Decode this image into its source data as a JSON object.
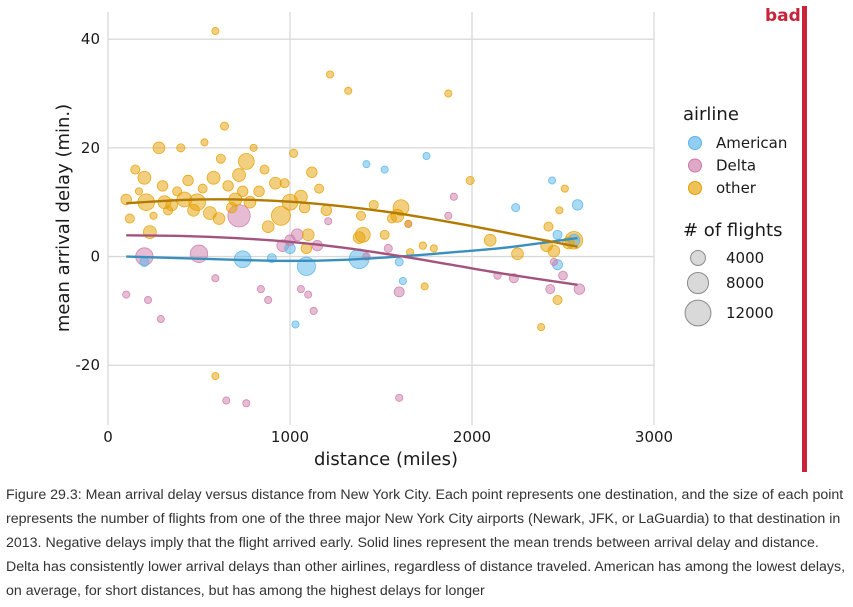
{
  "annotation": {
    "label": "bad"
  },
  "caption": "Figure 29.3: Mean arrival delay versus distance from New York City. Each point represents one destination, and the size of each point represents the number of flights from one of the three major New York City airports (Newark, JFK, or LaGuardia) to that destination in 2013. Negative delays imply that the flight arrived early. Solid lines represent the mean trends between arrival delay and distance. Delta has consistently lower arrival delays than other airlines, regardless of distance traveled. American has among the lowest delays, on average, for short distances, but has among the highest delays for longer",
  "colors": {
    "American": "#56b4e9",
    "Delta": "#cc79a7",
    "other": "#e69f00",
    "bad": "#c8233a"
  },
  "chart_data": {
    "type": "scatter",
    "xlabel": "distance (miles)",
    "ylabel": "mean arrival delay (min.)",
    "xlim": [
      0,
      3000
    ],
    "ylim": [
      -31,
      45
    ],
    "xticks": [
      0,
      1000,
      2000,
      3000
    ],
    "yticks": [
      -20,
      0,
      20,
      40
    ],
    "grid": true,
    "legend": {
      "color_title": "airline",
      "size_title": "# of flights",
      "size_values": [
        4000,
        8000,
        12000
      ],
      "position": "right"
    },
    "series": [
      {
        "name": "American",
        "points": [
          [
            200,
            -1,
            1500
          ],
          [
            740,
            -0.5,
            5000
          ],
          [
            900,
            -0.3,
            1500
          ],
          [
            1000,
            1.5,
            2000
          ],
          [
            1030,
            -12.5,
            600
          ],
          [
            1090,
            -1.8,
            6000
          ],
          [
            1380,
            -0.4,
            7000
          ],
          [
            1420,
            17,
            900
          ],
          [
            1520,
            16,
            900
          ],
          [
            1600,
            -1,
            1200
          ],
          [
            1620,
            -4.5,
            900
          ],
          [
            1750,
            18.5,
            500
          ],
          [
            2240,
            9,
            1200
          ],
          [
            2440,
            14,
            900
          ],
          [
            2470,
            -1.5,
            1800
          ],
          [
            2580,
            9.5,
            2000
          ],
          [
            2470,
            4,
            1500
          ],
          [
            2560,
            3,
            2500
          ]
        ]
      },
      {
        "name": "Delta",
        "points": [
          [
            100,
            -7,
            300
          ],
          [
            200,
            0,
            5500
          ],
          [
            220,
            -8,
            300
          ],
          [
            290,
            -11.5,
            300
          ],
          [
            500,
            0.5,
            5500
          ],
          [
            590,
            -4,
            500
          ],
          [
            650,
            -26.5,
            300
          ],
          [
            720,
            7.5,
            9000
          ],
          [
            760,
            -27,
            300
          ],
          [
            840,
            -6,
            300
          ],
          [
            880,
            -8,
            300
          ],
          [
            960,
            2,
            2500
          ],
          [
            1000,
            3,
            2000
          ],
          [
            1040,
            4,
            2500
          ],
          [
            1060,
            -6,
            900
          ],
          [
            1100,
            -7,
            900
          ],
          [
            1130,
            -10,
            300
          ],
          [
            1150,
            2,
            2000
          ],
          [
            1210,
            6.5,
            600
          ],
          [
            1420,
            0,
            1000
          ],
          [
            1540,
            1.5,
            1200
          ],
          [
            1600,
            -26,
            300
          ],
          [
            1600,
            -6.5,
            1800
          ],
          [
            1650,
            6,
            900
          ],
          [
            1870,
            7.5,
            700
          ],
          [
            1900,
            11,
            300
          ],
          [
            2140,
            -3.5,
            1000
          ],
          [
            2230,
            -4,
            1500
          ],
          [
            2430,
            -6,
            1500
          ],
          [
            2450,
            -1,
            700
          ],
          [
            2500,
            -3.5,
            1400
          ],
          [
            2590,
            -6,
            2000
          ]
        ]
      },
      {
        "name": "other",
        "points": [
          [
            100,
            10.5,
            2000
          ],
          [
            120,
            7,
            1500
          ],
          [
            150,
            16,
            1500
          ],
          [
            170,
            12,
            800
          ],
          [
            200,
            14.5,
            3000
          ],
          [
            210,
            10,
            5000
          ],
          [
            230,
            4.5,
            3000
          ],
          [
            250,
            7.5,
            900
          ],
          [
            280,
            20,
            2500
          ],
          [
            300,
            13,
            2000
          ],
          [
            310,
            10,
            3000
          ],
          [
            330,
            8.5,
            1500
          ],
          [
            350,
            9.5,
            2500
          ],
          [
            380,
            12,
            1500
          ],
          [
            400,
            20,
            1200
          ],
          [
            420,
            10.5,
            4000
          ],
          [
            440,
            14,
            2000
          ],
          [
            470,
            8.5,
            2500
          ],
          [
            490,
            10,
            5000
          ],
          [
            520,
            12.5,
            1500
          ],
          [
            530,
            21,
            900
          ],
          [
            560,
            8,
            3000
          ],
          [
            580,
            14.5,
            3000
          ],
          [
            590,
            41.5,
            600
          ],
          [
            590,
            -22,
            300
          ],
          [
            610,
            7,
            2500
          ],
          [
            620,
            18,
            1500
          ],
          [
            640,
            24,
            1200
          ],
          [
            660,
            13,
            2000
          ],
          [
            680,
            9,
            2000
          ],
          [
            700,
            10.5,
            3000
          ],
          [
            720,
            15,
            3000
          ],
          [
            740,
            12,
            2000
          ],
          [
            760,
            17.5,
            4500
          ],
          [
            780,
            10,
            2500
          ],
          [
            800,
            20,
            900
          ],
          [
            830,
            12,
            2000
          ],
          [
            860,
            16,
            1500
          ],
          [
            880,
            5.5,
            2500
          ],
          [
            920,
            13.5,
            2500
          ],
          [
            950,
            7.5,
            6500
          ],
          [
            970,
            13.5,
            1500
          ],
          [
            1000,
            10,
            4500
          ],
          [
            1020,
            19,
            1200
          ],
          [
            1060,
            11,
            3000
          ],
          [
            1080,
            9,
            2000
          ],
          [
            1090,
            1.5,
            2000
          ],
          [
            1100,
            4,
            2500
          ],
          [
            1120,
            15.5,
            2000
          ],
          [
            1160,
            12.5,
            1500
          ],
          [
            1200,
            8.5,
            2000
          ],
          [
            1220,
            33.5,
            900
          ],
          [
            1320,
            30.5,
            900
          ],
          [
            1380,
            3.5,
            2500
          ],
          [
            1390,
            7.5,
            1500
          ],
          [
            1400,
            4,
            4000
          ],
          [
            1460,
            9.5,
            1500
          ],
          [
            1520,
            4,
            1500
          ],
          [
            1560,
            7,
            1500
          ],
          [
            1590,
            7.5,
            3000
          ],
          [
            1610,
            9,
            4500
          ],
          [
            1650,
            6,
            900
          ],
          [
            1660,
            0.8,
            600
          ],
          [
            1730,
            2,
            1000
          ],
          [
            1740,
            -5.5,
            900
          ],
          [
            1790,
            1.5,
            900
          ],
          [
            1870,
            30,
            700
          ],
          [
            1990,
            14,
            1200
          ],
          [
            2100,
            3,
            2500
          ],
          [
            2250,
            0.5,
            2500
          ],
          [
            2380,
            -13,
            600
          ],
          [
            2410,
            2,
            2500
          ],
          [
            2420,
            5.5,
            1500
          ],
          [
            2450,
            1,
            2500
          ],
          [
            2470,
            -8,
            1500
          ],
          [
            2480,
            8.5,
            900
          ],
          [
            2510,
            12.5,
            900
          ],
          [
            2530,
            2.5,
            2500
          ],
          [
            2560,
            3,
            5500
          ]
        ]
      }
    ],
    "trend_lines": [
      {
        "name": "American",
        "x": [
          100,
          400,
          700,
          1000,
          1300,
          1600,
          1900,
          2200,
          2580
        ],
        "y": [
          0,
          -0.3,
          -0.6,
          -0.8,
          -0.6,
          0,
          0.8,
          1.7,
          3.4
        ]
      },
      {
        "name": "Delta",
        "x": [
          100,
          400,
          700,
          1000,
          1300,
          1600,
          1900,
          2200,
          2580
        ],
        "y": [
          3.9,
          3.8,
          3.4,
          2.7,
          1.6,
          0.1,
          -1.6,
          -3.3,
          -5.2
        ]
      },
      {
        "name": "other",
        "x": [
          100,
          400,
          700,
          1000,
          1300,
          1600,
          1900,
          2200,
          2580
        ],
        "y": [
          9.8,
          10.4,
          10.5,
          10.1,
          9.2,
          7.9,
          6.2,
          4.3,
          1.8
        ]
      }
    ]
  }
}
